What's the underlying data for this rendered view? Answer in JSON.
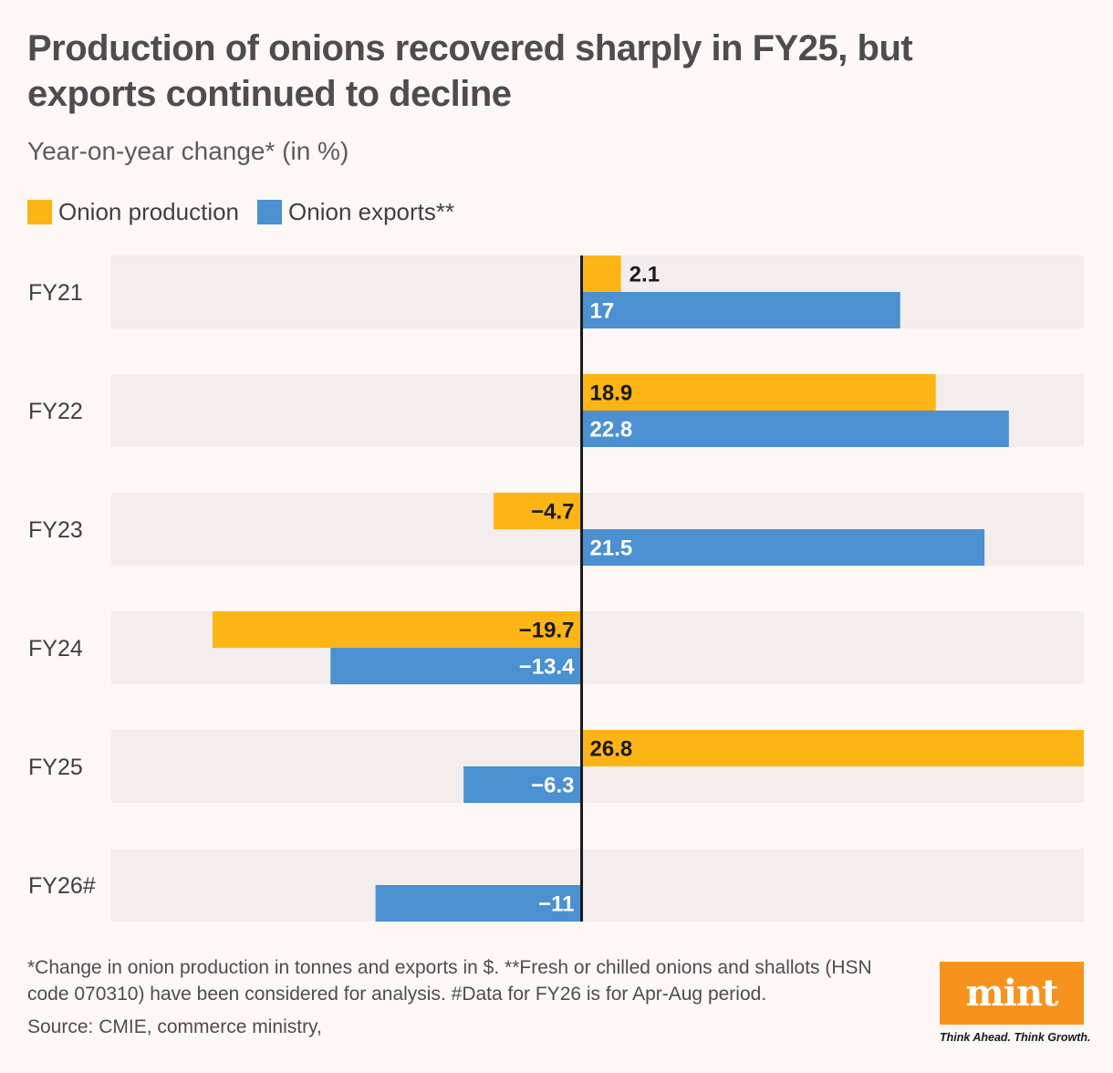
{
  "header": {
    "title": "Production of onions recovered sharply in FY25, but exports continued to decline",
    "subtitle": "Year-on-year change* (in %)"
  },
  "chart_data": {
    "type": "bar",
    "orientation": "horizontal",
    "categories": [
      "FY21",
      "FY22",
      "FY23",
      "FY24",
      "FY25",
      "FY26#"
    ],
    "series": [
      {
        "name": "Onion production",
        "color": "#fdb515",
        "values": [
          2.1,
          18.9,
          -4.7,
          -19.7,
          26.8,
          null
        ],
        "labels": [
          "2.1",
          "18.9",
          "−4.7",
          "−19.7",
          "26.8",
          null
        ]
      },
      {
        "name": "Onion exports**",
        "color": "#4b90d1",
        "values": [
          17,
          22.8,
          21.5,
          -13.4,
          -6.3,
          -11
        ],
        "labels": [
          "17",
          "22.8",
          "21.5",
          "−13.4",
          "−6.3",
          "−11"
        ]
      }
    ],
    "xlim": [
      -25.1,
      26.8
    ],
    "legend_position": "top-left",
    "grid": false,
    "row_band_color": "#f3eeed",
    "zero_line_color": "#1a1a1a"
  },
  "footer": {
    "footnote": "*Change in onion production in tonnes and exports in $. **Fresh or chilled onions and shallots (HSN code 070310) have been considered for analysis. #Data for FY26 is for Apr-Aug period.",
    "source": "Source: CMIE, commerce ministry,",
    "logo": "mint",
    "tagline": "Think Ahead. Think Growth.",
    "logo_color": "#f7931d"
  }
}
